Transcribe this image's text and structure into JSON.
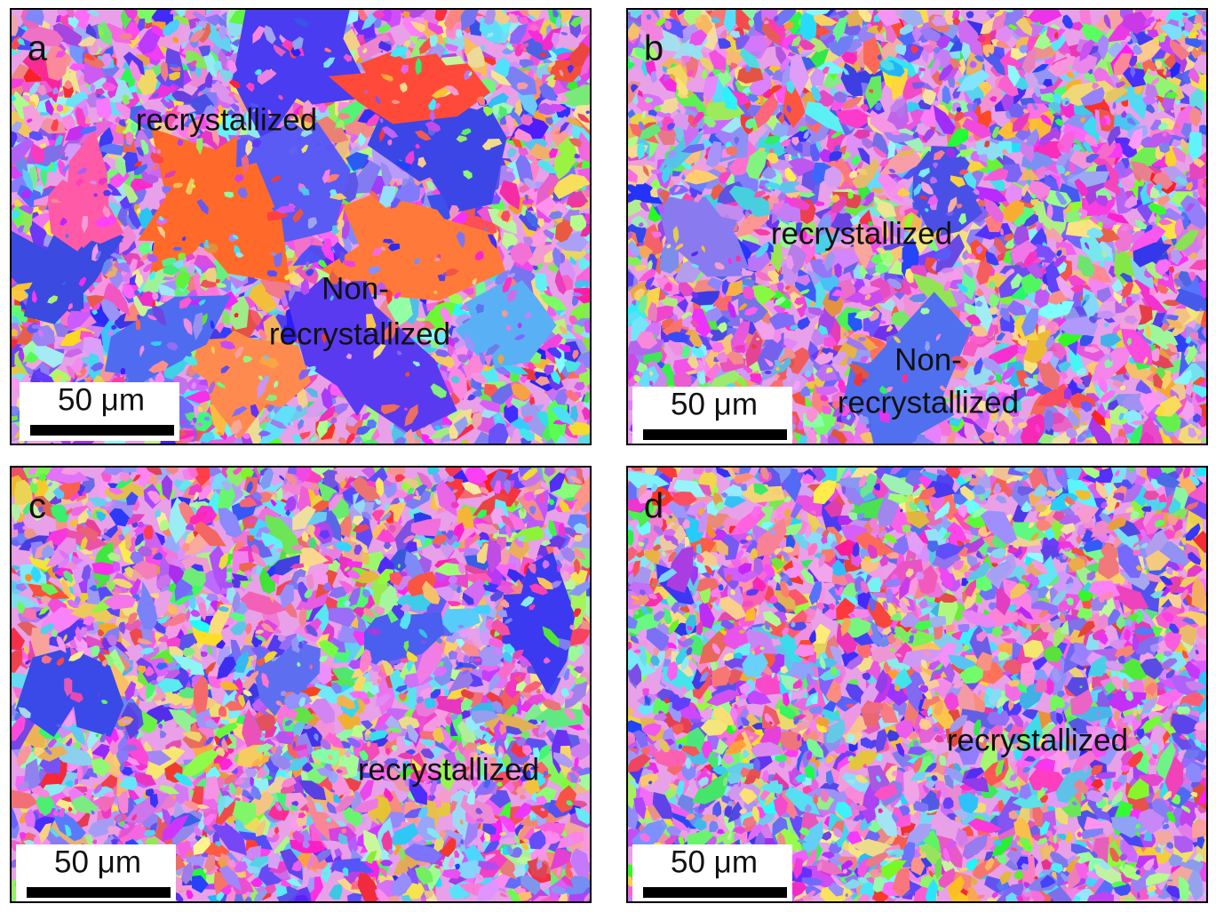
{
  "panels": [
    {
      "label": "a",
      "annotations": [
        {
          "lines": [
            "recrystallized"
          ]
        },
        {
          "lines": [
            "Non-",
            "recrystallized"
          ]
        }
      ],
      "scale_bar": "50 μm"
    },
    {
      "label": "b",
      "annotations": [
        {
          "lines": [
            "recrystallized"
          ]
        },
        {
          "lines": [
            "Non-",
            "recrystallized"
          ]
        }
      ],
      "scale_bar": "50 μm"
    },
    {
      "label": "c",
      "annotations": [
        {
          "lines": [
            "recrystallized"
          ]
        }
      ],
      "scale_bar": "50 μm"
    },
    {
      "label": "d",
      "annotations": [
        {
          "lines": [
            "recrystallized"
          ]
        }
      ],
      "scale_bar": "50 μm"
    }
  ]
}
